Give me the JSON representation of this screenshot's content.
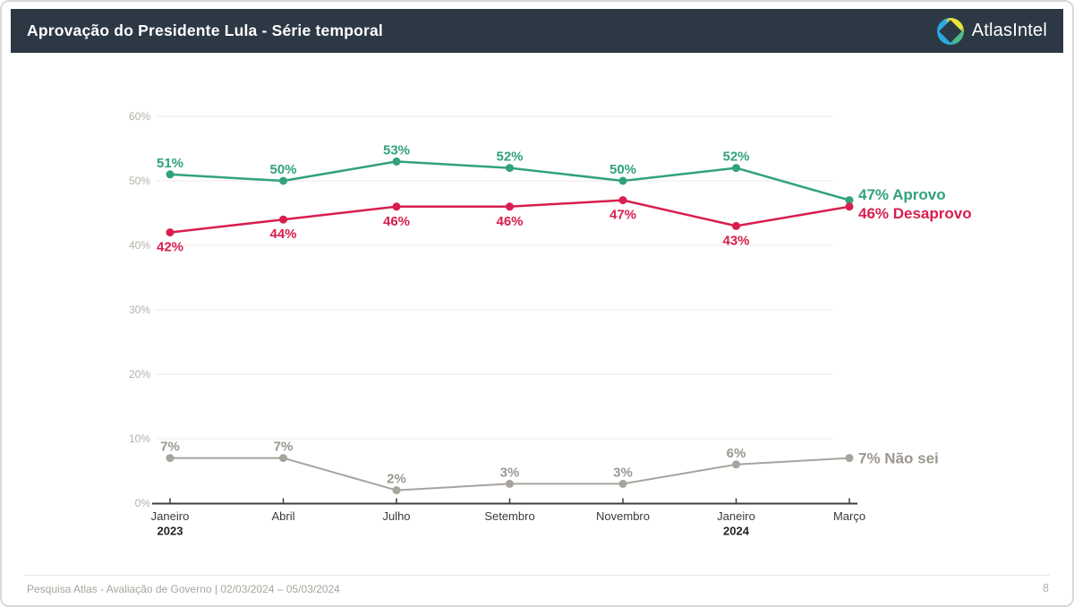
{
  "header": {
    "title": "Aprovação do Presidente Lula - Série temporal",
    "brand": "AtlasIntel"
  },
  "footer": {
    "source": "Pesquisa Atlas - Avaliação de Governo | 02/03/2024 – 05/03/2024",
    "page": "8"
  },
  "colors": {
    "header_background": "#2d3845",
    "approve": "#31a27c",
    "disapprove": "#d81e4e",
    "unknown_line": "#a7a39d",
    "unknown_text": "#9c978f",
    "axis": "#3f3f3f",
    "grid": "#ecebe9",
    "ytick_text": "#b5b1ab"
  },
  "chart_data": {
    "type": "line",
    "title": "Aprovação do Presidente Lula - Série temporal",
    "categories": [
      {
        "month": "Janeiro",
        "year": "2023"
      },
      {
        "month": "Abril",
        "year": ""
      },
      {
        "month": "Julho",
        "year": ""
      },
      {
        "month": "Setembro",
        "year": ""
      },
      {
        "month": "Novembro",
        "year": ""
      },
      {
        "month": "Janeiro",
        "year": "2024"
      },
      {
        "month": "Março",
        "year": ""
      }
    ],
    "series": [
      {
        "name": "Aprovo",
        "color": "#31a27c",
        "values": [
          51,
          50,
          53,
          52,
          50,
          52,
          47
        ],
        "end_label": "47% Aprovo",
        "label_position": "above"
      },
      {
        "name": "Desaprovo",
        "color": "#d81e4e",
        "values": [
          42,
          44,
          46,
          46,
          47,
          43,
          46
        ],
        "end_label": "46% Desaprovo",
        "label_position": "below"
      },
      {
        "name": "Não sei",
        "color": "#a7a39d",
        "label_color": "#9c978f",
        "values": [
          7,
          7,
          2,
          3,
          3,
          6,
          7
        ],
        "end_label": "7% Não sei",
        "label_position": "above"
      }
    ],
    "ylim": [
      0,
      60
    ],
    "yticks": [
      0,
      10,
      20,
      30,
      40,
      50,
      60
    ],
    "ytick_suffix": "%",
    "xlabel": "",
    "ylabel": "",
    "grid": true,
    "legend_position": "end-of-line-labels-right"
  }
}
